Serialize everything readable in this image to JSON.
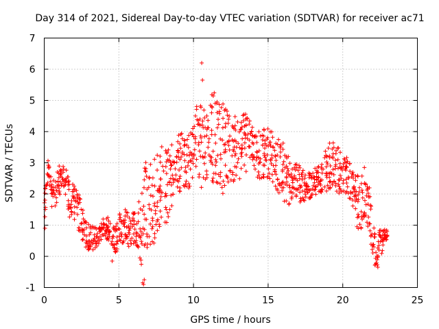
{
  "chart_data": {
    "type": "scatter",
    "title": "Day 314 of 2021, Sidereal Day-to-day VTEC variation (SDTVAR) for receiver ac71",
    "xlabel": "GPS time / hours",
    "ylabel": "SDTVAR / TECUs",
    "xlim": [
      0,
      25
    ],
    "ylim": [
      -1,
      7
    ],
    "xticks": [
      0,
      5,
      10,
      15,
      20,
      25
    ],
    "yticks": [
      -1,
      0,
      1,
      2,
      3,
      4,
      5,
      6,
      7
    ],
    "xtick_labels": [
      "0",
      "5",
      "10",
      "15",
      "20",
      "25"
    ],
    "ytick_labels": [
      "-1",
      "0",
      "1",
      "2",
      "3",
      "4",
      "5",
      "6",
      "7"
    ],
    "grid": true,
    "marker": "+",
    "color": "#ff0000",
    "series": [
      {
        "name": "SDTVAR",
        "note": "dense +-marker point cloud; envelope sampled every 0.25 h (center y, spread)",
        "envelope": [
          [
            0.0,
            1.4,
            0.5
          ],
          [
            0.25,
            2.8,
            0.3
          ],
          [
            0.5,
            2.0,
            0.5
          ],
          [
            0.75,
            2.1,
            0.5
          ],
          [
            1.0,
            2.4,
            0.5
          ],
          [
            1.25,
            2.5,
            0.4
          ],
          [
            1.5,
            2.3,
            0.5
          ],
          [
            1.75,
            1.7,
            0.6
          ],
          [
            2.0,
            1.8,
            0.6
          ],
          [
            2.25,
            1.5,
            0.6
          ],
          [
            2.5,
            1.1,
            0.6
          ],
          [
            2.75,
            0.7,
            0.5
          ],
          [
            3.0,
            0.6,
            0.4
          ],
          [
            3.25,
            0.6,
            0.4
          ],
          [
            3.5,
            0.6,
            0.3
          ],
          [
            3.75,
            0.7,
            0.3
          ],
          [
            4.0,
            1.0,
            0.3
          ],
          [
            4.25,
            0.9,
            0.4
          ],
          [
            4.5,
            0.5,
            0.6
          ],
          [
            4.75,
            0.5,
            0.5
          ],
          [
            5.0,
            0.8,
            0.5
          ],
          [
            5.25,
            1.0,
            0.6
          ],
          [
            5.5,
            0.9,
            0.6
          ],
          [
            5.75,
            0.9,
            0.6
          ],
          [
            6.0,
            1.0,
            0.6
          ],
          [
            6.25,
            0.9,
            0.7
          ],
          [
            6.5,
            0.8,
            1.3
          ],
          [
            6.75,
            1.5,
            1.5
          ],
          [
            7.0,
            1.9,
            1.4
          ],
          [
            7.25,
            1.6,
            1.4
          ],
          [
            7.5,
            2.0,
            1.4
          ],
          [
            7.75,
            2.2,
            1.3
          ],
          [
            8.0,
            2.4,
            1.3
          ],
          [
            8.25,
            2.2,
            1.2
          ],
          [
            8.5,
            2.7,
            1.1
          ],
          [
            8.75,
            2.7,
            1.0
          ],
          [
            9.0,
            3.1,
            1.0
          ],
          [
            9.25,
            3.0,
            1.0
          ],
          [
            9.5,
            3.1,
            0.9
          ],
          [
            9.75,
            3.0,
            0.9
          ],
          [
            10.0,
            3.4,
            0.9
          ],
          [
            10.25,
            3.8,
            1.1
          ],
          [
            10.5,
            3.5,
            1.5
          ],
          [
            10.75,
            3.7,
            1.3
          ],
          [
            11.0,
            3.9,
            1.3
          ],
          [
            11.25,
            3.8,
            1.5
          ],
          [
            11.5,
            3.7,
            1.5
          ],
          [
            11.75,
            3.6,
            1.4
          ],
          [
            12.0,
            3.4,
            1.5
          ],
          [
            12.25,
            3.5,
            1.3
          ],
          [
            12.5,
            3.5,
            1.2
          ],
          [
            12.75,
            3.5,
            1.1
          ],
          [
            13.0,
            3.4,
            1.0
          ],
          [
            13.25,
            3.6,
            1.0
          ],
          [
            13.5,
            3.6,
            1.0
          ],
          [
            13.75,
            3.8,
            0.7
          ],
          [
            14.0,
            3.4,
            0.7
          ],
          [
            14.25,
            3.2,
            0.7
          ],
          [
            14.5,
            3.3,
            0.8
          ],
          [
            14.75,
            3.3,
            0.8
          ],
          [
            15.0,
            3.2,
            0.9
          ],
          [
            15.25,
            3.1,
            0.9
          ],
          [
            15.5,
            3.0,
            0.9
          ],
          [
            15.75,
            2.9,
            0.9
          ],
          [
            16.0,
            2.8,
            1.0
          ],
          [
            16.25,
            2.6,
            1.0
          ],
          [
            16.5,
            2.3,
            0.6
          ],
          [
            16.75,
            2.4,
            0.5
          ],
          [
            17.0,
            2.5,
            0.6
          ],
          [
            17.25,
            2.2,
            0.6
          ],
          [
            17.5,
            2.2,
            0.5
          ],
          [
            17.75,
            2.3,
            0.5
          ],
          [
            18.0,
            2.4,
            0.5
          ],
          [
            18.25,
            2.4,
            0.4
          ],
          [
            18.5,
            2.5,
            0.5
          ],
          [
            18.75,
            2.7,
            0.6
          ],
          [
            19.0,
            2.8,
            0.8
          ],
          [
            19.25,
            3.0,
            0.8
          ],
          [
            19.5,
            2.9,
            0.8
          ],
          [
            19.75,
            2.7,
            0.8
          ],
          [
            20.0,
            2.7,
            0.6
          ],
          [
            20.25,
            2.6,
            0.6
          ],
          [
            20.5,
            2.4,
            0.6
          ],
          [
            20.75,
            2.2,
            0.7
          ],
          [
            21.0,
            1.8,
            0.9
          ],
          [
            21.25,
            1.6,
            0.9
          ],
          [
            21.5,
            2.2,
            0.9
          ],
          [
            21.75,
            1.6,
            0.8
          ],
          [
            22.0,
            0.7,
            0.8
          ],
          [
            22.25,
            0.2,
            0.6
          ],
          [
            22.5,
            0.4,
            0.5
          ],
          [
            22.75,
            0.6,
            0.3
          ],
          [
            23.0,
            0.7,
            0.15
          ]
        ],
        "outliers": [
          [
            10.55,
            6.2
          ],
          [
            10.6,
            5.65
          ],
          [
            6.65,
            -0.9
          ],
          [
            6.7,
            -0.75
          ],
          [
            6.6,
            -0.85
          ],
          [
            0.05,
            0.9
          ],
          [
            4.55,
            -0.15
          ],
          [
            20.95,
            0.95
          ],
          [
            22.35,
            -0.35
          ]
        ]
      }
    ]
  }
}
